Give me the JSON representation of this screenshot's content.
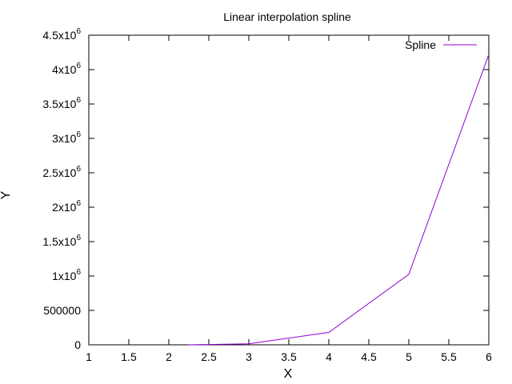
{
  "chart_data": {
    "type": "line",
    "title": "Linear interpolation spline",
    "xlabel": "X",
    "ylabel": "Y",
    "xlim": [
      1,
      6
    ],
    "ylim": [
      0,
      4500000
    ],
    "grid": false,
    "legend_position": "top-right",
    "x_ticks": [
      1,
      1.5,
      2,
      2.5,
      3,
      3.5,
      4,
      4.5,
      5,
      5.5,
      6
    ],
    "x_tick_labels": [
      "1",
      "1.5",
      "2",
      "2.5",
      "3",
      "3.5",
      "4",
      "4.5",
      "5",
      "5.5",
      "6"
    ],
    "y_ticks": [
      0,
      500000,
      1000000,
      1500000,
      2000000,
      2500000,
      3000000,
      3500000,
      4000000,
      4500000
    ],
    "y_tick_labels": [
      {
        "mant": "0",
        "exp": ""
      },
      {
        "mant": "500000",
        "exp": ""
      },
      {
        "mant": "1x10",
        "exp": "6"
      },
      {
        "mant": "1.5x10",
        "exp": "6"
      },
      {
        "mant": "2x10",
        "exp": "6"
      },
      {
        "mant": "2.5x10",
        "exp": "6"
      },
      {
        "mant": "3x10",
        "exp": "6"
      },
      {
        "mant": "3.5x10",
        "exp": "6"
      },
      {
        "mant": "4x10",
        "exp": "6"
      },
      {
        "mant": "4.5x10",
        "exp": "6"
      }
    ],
    "series": [
      {
        "name": "Spline",
        "color": "#9400d3",
        "x": [
          2.25,
          3,
          4,
          5,
          6
        ],
        "y": [
          0,
          15000,
          180000,
          1025000,
          4220000
        ]
      }
    ]
  }
}
